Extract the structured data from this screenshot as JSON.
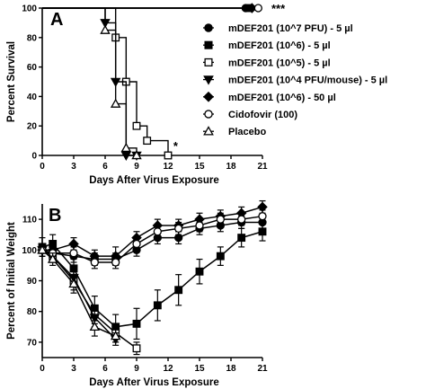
{
  "chart_data": [
    {
      "panel": "A",
      "type": "line",
      "step": true,
      "xlabel": "Days After Virus Exposure",
      "ylabel": "Percent Survival",
      "xlim": [
        0,
        21
      ],
      "ylim": [
        0,
        100
      ],
      "xticks": [
        0,
        3,
        6,
        9,
        12,
        15,
        18,
        21
      ],
      "yticks": [
        0,
        20,
        40,
        60,
        80,
        100
      ],
      "legend_position": "right",
      "annotations": [
        {
          "text": "***",
          "x": 21,
          "y": 100
        },
        {
          "text": "*",
          "x": 12.5,
          "y": 6
        }
      ],
      "series": [
        {
          "name": "mDEF201 (10^7 PFU) - 5 µl",
          "marker": "circle-filled",
          "x": [
            0,
            19.4
          ],
          "y": [
            100,
            100
          ]
        },
        {
          "name": "mDEF201 (10^6) - 5 µl",
          "marker": "square-filled",
          "x": [
            0,
            19.7
          ],
          "y": [
            100,
            100
          ]
        },
        {
          "name": "mDEF201 (10^5) - 5 µl",
          "marker": "square-open",
          "x": [
            0,
            7,
            8,
            9,
            10,
            12
          ],
          "y": [
            100,
            80,
            50,
            20,
            10,
            0
          ]
        },
        {
          "name": "mDEF201 (10^4 PFU/mouse) - 5 µl",
          "marker": "triangle-down-filled",
          "x": [
            0,
            6,
            7,
            8,
            9
          ],
          "y": [
            100,
            90,
            50,
            0,
            0
          ]
        },
        {
          "name": "mDEF201 (10^6) - 50 µl",
          "marker": "diamond-filled",
          "x": [
            0,
            20
          ],
          "y": [
            100,
            100
          ]
        },
        {
          "name": "Cidofovir (100)",
          "marker": "circle-open",
          "x": [
            0,
            20.6
          ],
          "y": [
            100,
            100
          ]
        },
        {
          "name": "Placebo",
          "marker": "triangle-up-open",
          "x": [
            0,
            6,
            7,
            8,
            9
          ],
          "y": [
            100,
            85,
            35,
            5,
            0
          ]
        }
      ]
    },
    {
      "panel": "B",
      "type": "line",
      "xlabel": "Days After Virus Exposure",
      "ylabel": "Percent of Initial Weight",
      "xlim": [
        0,
        21
      ],
      "ylim": [
        65,
        115
      ],
      "xticks": [
        0,
        3,
        6,
        9,
        12,
        15,
        18,
        21
      ],
      "yticks": [
        70,
        80,
        90,
        100,
        110
      ],
      "series": [
        {
          "name": "mDEF201 (10^7 PFU) - 5 µl",
          "marker": "circle-filled",
          "x": [
            0,
            1,
            3,
            5,
            7,
            9,
            11,
            13,
            15,
            17,
            19,
            21
          ],
          "y": [
            100,
            99,
            98,
            97,
            97,
            100,
            104,
            104,
            107,
            108,
            109,
            109
          ],
          "err": [
            2,
            2,
            2,
            2,
            2,
            2,
            2,
            2,
            2,
            2,
            2,
            2
          ]
        },
        {
          "name": "mDEF201 (10^6) - 5 µl",
          "marker": "square-filled",
          "x": [
            0,
            1,
            3,
            5,
            7,
            9,
            11,
            13,
            15,
            17,
            19,
            21
          ],
          "y": [
            101,
            102,
            94,
            81,
            75,
            76,
            82,
            87,
            93,
            98,
            104,
            106
          ],
          "err": [
            3,
            3,
            4,
            4,
            4,
            5,
            5,
            5,
            4,
            3,
            3,
            3
          ]
        },
        {
          "name": "mDEF201 (10^5) - 5 µl",
          "marker": "square-open",
          "x": [
            0,
            1,
            3,
            5,
            7,
            9
          ],
          "y": [
            100,
            98,
            90,
            79,
            73,
            68
          ],
          "err": [
            2,
            2,
            3,
            3,
            3,
            2
          ]
        },
        {
          "name": "mDEF201 (10^4 PFU/mouse) - 5 µl",
          "marker": "triangle-down-filled",
          "x": [
            0,
            1,
            3,
            5,
            7
          ],
          "y": [
            100,
            98,
            91,
            78,
            71
          ],
          "err": [
            2,
            2,
            3,
            3,
            2
          ]
        },
        {
          "name": "mDEF201 (10^6) - 50 µl",
          "marker": "diamond-filled",
          "x": [
            0,
            1,
            3,
            5,
            7,
            9,
            11,
            13,
            15,
            17,
            19,
            21
          ],
          "y": [
            100,
            100,
            102,
            98,
            98,
            104,
            108,
            108,
            110,
            111,
            112,
            114
          ],
          "err": [
            2,
            2,
            2,
            2,
            3,
            2,
            2,
            2,
            2,
            2,
            2,
            2
          ]
        },
        {
          "name": "Cidofovir (100)",
          "marker": "circle-open",
          "x": [
            0,
            1,
            3,
            5,
            7,
            9,
            11,
            13,
            15,
            17,
            19,
            21
          ],
          "y": [
            100,
            99,
            99,
            96,
            96,
            102,
            106,
            107,
            108,
            110,
            110,
            111
          ],
          "err": [
            2,
            2,
            2,
            2,
            2,
            2,
            2,
            2,
            2,
            2,
            2,
            2
          ]
        },
        {
          "name": "Placebo",
          "marker": "triangle-up-open",
          "x": [
            0,
            1,
            3,
            5,
            7
          ],
          "y": [
            100,
            97,
            89,
            75,
            72
          ],
          "err": [
            2,
            2,
            3,
            3,
            2
          ]
        }
      ]
    }
  ]
}
